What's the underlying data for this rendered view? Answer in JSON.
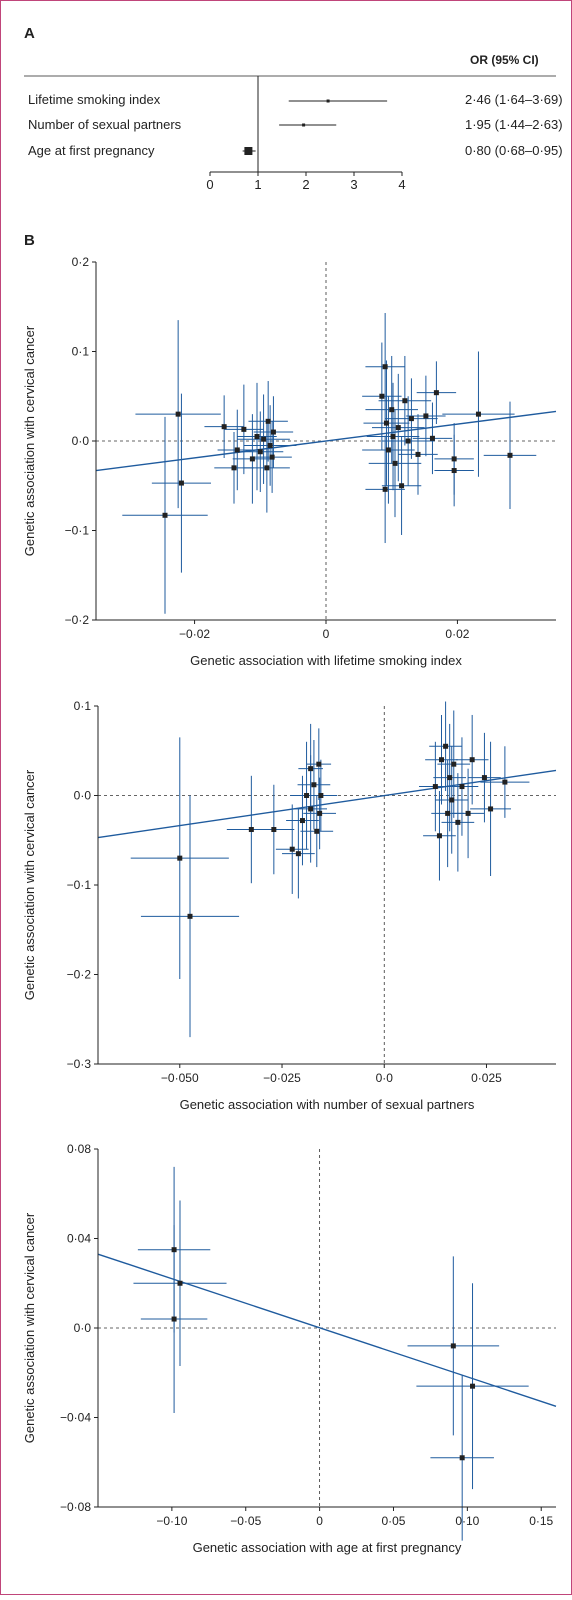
{
  "colors": {
    "accent": "#1f5b9e",
    "frame": "#c0457a",
    "marker": "#222222"
  },
  "chart_data": [
    {
      "panel_label": "A",
      "type": "forest",
      "column_header": "OR (95% CI)",
      "xlim": [
        0,
        4
      ],
      "xticks": [
        "0",
        "1",
        "2",
        "3",
        "4"
      ],
      "reference_line": 1,
      "rows": [
        {
          "label": "Lifetime smoking index",
          "or": 2.46,
          "lo": 1.64,
          "hi": 3.69,
          "ci_text": "2·46 (1·64–3·69)"
        },
        {
          "label": "Number of sexual partners",
          "or": 1.95,
          "lo": 1.44,
          "hi": 2.63,
          "ci_text": "1·95 (1·44–2·63)"
        },
        {
          "label": "Age at first pregnancy",
          "or": 0.8,
          "lo": 0.68,
          "hi": 0.95,
          "ci_text": "0·80 (0·68–0·95)"
        }
      ]
    },
    {
      "panel_label": "B",
      "type": "scatter",
      "xlabel": "Genetic association with lifetime smoking index",
      "ylabel": "Genetic association with cervical cancer",
      "xlim": [
        -0.035,
        0.035
      ],
      "ylim": [
        -0.2,
        0.2
      ],
      "xticks": [
        {
          "v": -0.02,
          "t": "−0·02"
        },
        {
          "v": 0,
          "t": "0"
        },
        {
          "v": 0.02,
          "t": "0·02"
        }
      ],
      "yticks": [
        {
          "v": 0.2,
          "t": "0·2"
        },
        {
          "v": 0.1,
          "t": "0·1"
        },
        {
          "v": 0,
          "t": "0·0"
        },
        {
          "v": -0.1,
          "t": "−0·1"
        },
        {
          "v": -0.2,
          "t": "−0·2"
        }
      ],
      "fit_line": [
        [
          -0.035,
          -0.033
        ],
        [
          0.035,
          0.033
        ]
      ],
      "points": [
        {
          "x": -0.0245,
          "y": -0.083,
          "xe": 0.0065,
          "ye": 0.11
        },
        {
          "x": -0.0225,
          "y": 0.03,
          "xe": 0.0065,
          "ye": 0.105
        },
        {
          "x": -0.022,
          "y": -0.047,
          "xe": 0.0045,
          "ye": 0.1
        },
        {
          "x": -0.0155,
          "y": 0.016,
          "xe": 0.003,
          "ye": 0.035
        },
        {
          "x": -0.014,
          "y": -0.03,
          "xe": 0.003,
          "ye": 0.04
        },
        {
          "x": -0.0135,
          "y": -0.01,
          "xe": 0.003,
          "ye": 0.045
        },
        {
          "x": -0.0125,
          "y": 0.013,
          "xe": 0.003,
          "ye": 0.05
        },
        {
          "x": -0.0112,
          "y": -0.02,
          "xe": 0.003,
          "ye": 0.05
        },
        {
          "x": -0.0105,
          "y": 0.005,
          "xe": 0.003,
          "ye": 0.06
        },
        {
          "x": -0.01,
          "y": -0.012,
          "xe": 0.0035,
          "ye": 0.045
        },
        {
          "x": -0.0095,
          "y": 0.002,
          "xe": 0.004,
          "ye": 0.05
        },
        {
          "x": -0.009,
          "y": -0.03,
          "xe": 0.0035,
          "ye": 0.05
        },
        {
          "x": -0.0088,
          "y": 0.022,
          "xe": 0.003,
          "ye": 0.045
        },
        {
          "x": -0.0085,
          "y": -0.005,
          "xe": 0.004,
          "ye": 0.045
        },
        {
          "x": -0.008,
          "y": 0.01,
          "xe": 0.003,
          "ye": 0.04
        },
        {
          "x": -0.0082,
          "y": -0.018,
          "xe": 0.003,
          "ye": 0.04
        },
        {
          "x": 0.0085,
          "y": 0.05,
          "xe": 0.003,
          "ye": 0.06
        },
        {
          "x": 0.009,
          "y": 0.083,
          "xe": 0.003,
          "ye": 0.06
        },
        {
          "x": 0.009,
          "y": -0.054,
          "xe": 0.003,
          "ye": 0.06
        },
        {
          "x": 0.0092,
          "y": 0.02,
          "xe": 0.0035,
          "ye": 0.07
        },
        {
          "x": 0.0095,
          "y": -0.01,
          "xe": 0.004,
          "ye": 0.06
        },
        {
          "x": 0.01,
          "y": 0.035,
          "xe": 0.004,
          "ye": 0.06
        },
        {
          "x": 0.0102,
          "y": 0.005,
          "xe": 0.004,
          "ye": 0.06
        },
        {
          "x": 0.0105,
          "y": -0.025,
          "xe": 0.004,
          "ye": 0.06
        },
        {
          "x": 0.011,
          "y": 0.015,
          "xe": 0.004,
          "ye": 0.06
        },
        {
          "x": 0.0115,
          "y": -0.05,
          "xe": 0.003,
          "ye": 0.055
        },
        {
          "x": 0.012,
          "y": 0.045,
          "xe": 0.004,
          "ye": 0.05
        },
        {
          "x": 0.0125,
          "y": 0.0,
          "xe": 0.004,
          "ye": 0.05
        },
        {
          "x": 0.013,
          "y": 0.025,
          "xe": 0.004,
          "ye": 0.045
        },
        {
          "x": 0.014,
          "y": -0.015,
          "xe": 0.003,
          "ye": 0.045
        },
        {
          "x": 0.0152,
          "y": 0.028,
          "xe": 0.003,
          "ye": 0.045
        },
        {
          "x": 0.0162,
          "y": 0.003,
          "xe": 0.003,
          "ye": 0.04
        },
        {
          "x": 0.0168,
          "y": 0.054,
          "xe": 0.003,
          "ye": 0.035
        },
        {
          "x": 0.0195,
          "y": -0.02,
          "xe": 0.003,
          "ye": 0.04
        },
        {
          "x": 0.0195,
          "y": -0.033,
          "xe": 0.003,
          "ye": 0.04
        },
        {
          "x": 0.0232,
          "y": 0.03,
          "xe": 0.0055,
          "ye": 0.07
        },
        {
          "x": 0.028,
          "y": -0.016,
          "xe": 0.004,
          "ye": 0.06
        }
      ]
    },
    {
      "type": "scatter",
      "xlabel": "Genetic association with number of sexual partners",
      "ylabel": "Genetic association with cervical cancer",
      "xlim": [
        -0.07,
        0.042
      ],
      "ylim": [
        -0.3,
        0.1
      ],
      "xticks": [
        {
          "v": -0.05,
          "t": "−0·050"
        },
        {
          "v": -0.025,
          "t": "−0·025"
        },
        {
          "v": 0,
          "t": "0·0"
        },
        {
          "v": 0.025,
          "t": "0·025"
        }
      ],
      "yticks": [
        {
          "v": 0.1,
          "t": "0·1"
        },
        {
          "v": 0,
          "t": "0·0"
        },
        {
          "v": -0.1,
          "t": "−0·1"
        },
        {
          "v": -0.2,
          "t": "−0·2"
        },
        {
          "v": -0.3,
          "t": "−0·3"
        }
      ],
      "fit_line": [
        [
          -0.07,
          -0.047
        ],
        [
          0.042,
          0.028
        ]
      ],
      "points": [
        {
          "x": -0.05,
          "y": -0.07,
          "xe": 0.012,
          "ye": 0.135
        },
        {
          "x": -0.0475,
          "y": -0.135,
          "xe": 0.012,
          "ye": 0.135
        },
        {
          "x": -0.0325,
          "y": -0.038,
          "xe": 0.006,
          "ye": 0.06
        },
        {
          "x": -0.027,
          "y": -0.038,
          "xe": 0.005,
          "ye": 0.05
        },
        {
          "x": -0.0225,
          "y": -0.06,
          "xe": 0.004,
          "ye": 0.05
        },
        {
          "x": -0.021,
          "y": -0.065,
          "xe": 0.004,
          "ye": 0.05
        },
        {
          "x": -0.02,
          "y": -0.028,
          "xe": 0.004,
          "ye": 0.05
        },
        {
          "x": -0.019,
          "y": 0.0,
          "xe": 0.004,
          "ye": 0.06
        },
        {
          "x": -0.018,
          "y": -0.015,
          "xe": 0.004,
          "ye": 0.06
        },
        {
          "x": -0.018,
          "y": 0.03,
          "xe": 0.003,
          "ye": 0.05
        },
        {
          "x": -0.0172,
          "y": 0.012,
          "xe": 0.004,
          "ye": 0.05
        },
        {
          "x": -0.0165,
          "y": -0.04,
          "xe": 0.004,
          "ye": 0.04
        },
        {
          "x": -0.016,
          "y": 0.035,
          "xe": 0.003,
          "ye": 0.04
        },
        {
          "x": -0.0158,
          "y": -0.02,
          "xe": 0.004,
          "ye": 0.04
        },
        {
          "x": -0.0155,
          "y": 0.0,
          "xe": 0.004,
          "ye": 0.04
        },
        {
          "x": 0.0125,
          "y": 0.01,
          "xe": 0.004,
          "ye": 0.05
        },
        {
          "x": 0.0135,
          "y": -0.045,
          "xe": 0.004,
          "ye": 0.05
        },
        {
          "x": 0.014,
          "y": 0.04,
          "xe": 0.004,
          "ye": 0.05
        },
        {
          "x": 0.015,
          "y": 0.055,
          "xe": 0.004,
          "ye": 0.05
        },
        {
          "x": 0.0155,
          "y": -0.02,
          "xe": 0.004,
          "ye": 0.06
        },
        {
          "x": 0.016,
          "y": 0.02,
          "xe": 0.004,
          "ye": 0.06
        },
        {
          "x": 0.0165,
          "y": -0.005,
          "xe": 0.004,
          "ye": 0.06
        },
        {
          "x": 0.017,
          "y": 0.035,
          "xe": 0.004,
          "ye": 0.06
        },
        {
          "x": 0.018,
          "y": -0.03,
          "xe": 0.004,
          "ye": 0.055
        },
        {
          "x": 0.019,
          "y": 0.01,
          "xe": 0.004,
          "ye": 0.055
        },
        {
          "x": 0.0205,
          "y": -0.02,
          "xe": 0.004,
          "ye": 0.05
        },
        {
          "x": 0.0215,
          "y": 0.04,
          "xe": 0.004,
          "ye": 0.05
        },
        {
          "x": 0.0245,
          "y": 0.02,
          "xe": 0.004,
          "ye": 0.05
        },
        {
          "x": 0.026,
          "y": -0.015,
          "xe": 0.005,
          "ye": 0.075
        },
        {
          "x": 0.0295,
          "y": 0.015,
          "xe": 0.006,
          "ye": 0.04
        }
      ]
    },
    {
      "type": "scatter",
      "xlabel": "Genetic association with age at first pregnancy",
      "ylabel": "Genetic association with cervical cancer",
      "xlim": [
        -0.15,
        0.16
      ],
      "ylim": [
        -0.08,
        0.08
      ],
      "xticks": [
        {
          "v": -0.1,
          "t": "−0·10"
        },
        {
          "v": -0.05,
          "t": "−0·05"
        },
        {
          "v": 0,
          "t": "0"
        },
        {
          "v": 0.05,
          "t": "0·05"
        },
        {
          "v": 0.1,
          "t": "0·10"
        },
        {
          "v": 0.15,
          "t": "0·15"
        }
      ],
      "yticks": [
        {
          "v": 0.08,
          "t": "0·08"
        },
        {
          "v": 0.04,
          "t": "0·04"
        },
        {
          "v": 0,
          "t": "0·0"
        },
        {
          "v": -0.04,
          "t": "−0·04"
        },
        {
          "v": -0.08,
          "t": "−0·08"
        }
      ],
      "fit_line": [
        [
          -0.15,
          0.033
        ],
        [
          0.16,
          -0.035
        ]
      ],
      "points": [
        {
          "x": -0.0985,
          "y": 0.035,
          "xe": 0.0245,
          "ye": 0.037
        },
        {
          "x": -0.0945,
          "y": 0.02,
          "xe": 0.0315,
          "ye": 0.037
        },
        {
          "x": -0.0985,
          "y": 0.004,
          "xe": 0.0225,
          "ye": 0.042
        },
        {
          "x": 0.0905,
          "y": -0.008,
          "xe": 0.031,
          "ye": 0.04
        },
        {
          "x": 0.1035,
          "y": -0.026,
          "xe": 0.038,
          "ye": 0.046
        },
        {
          "x": 0.0965,
          "y": -0.058,
          "xe": 0.0215,
          "ye": 0.037
        }
      ]
    }
  ]
}
